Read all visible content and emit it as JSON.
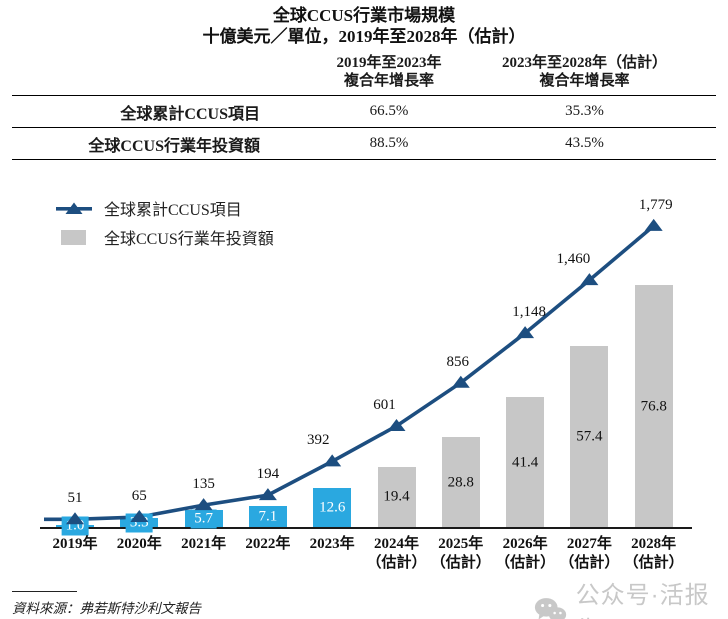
{
  "title": "全球CCUS行業市場規模",
  "subtitle": "十億美元／單位，2019年至2028年（估計）",
  "table": {
    "columns": [
      {
        "line1": "2019年至2023年",
        "line2": "複合年增長率"
      },
      {
        "line1": "2023年至2028年（估計）",
        "line2": "複合年增長率"
      }
    ],
    "rows": [
      {
        "label": "全球累計CCUS項目",
        "values": [
          "66.5%",
          "35.3%"
        ]
      },
      {
        "label": "全球CCUS行業年投資額",
        "values": [
          "88.5%",
          "43.5%"
        ]
      }
    ]
  },
  "chart_data": {
    "type": "combo line + bar, dual implicit scales, no visible y-axis",
    "categories": [
      {
        "label": "2019年",
        "sublabel": "",
        "estimate": false
      },
      {
        "label": "2020年",
        "sublabel": "",
        "estimate": false
      },
      {
        "label": "2021年",
        "sublabel": "",
        "estimate": false
      },
      {
        "label": "2022年",
        "sublabel": "",
        "estimate": false
      },
      {
        "label": "2023年",
        "sublabel": "",
        "estimate": false
      },
      {
        "label": "2024年",
        "sublabel": "（估計）",
        "estimate": true
      },
      {
        "label": "2025年",
        "sublabel": "（估計）",
        "estimate": true
      },
      {
        "label": "2026年",
        "sublabel": "（估計）",
        "estimate": true
      },
      {
        "label": "2027年",
        "sublabel": "（估計）",
        "estimate": true
      },
      {
        "label": "2028年",
        "sublabel": "（估計）",
        "estimate": true
      }
    ],
    "series": [
      {
        "name": "全球累計CCUS項目",
        "type": "line",
        "color": "#1d4e80",
        "values": [
          51,
          65,
          135,
          194,
          392,
          601,
          856,
          1148,
          1460,
          1779
        ],
        "value_labels": [
          "51",
          "65",
          "135",
          "194",
          "392",
          "601",
          "856",
          "1,148",
          "1,460",
          "1,779"
        ]
      },
      {
        "name": "全球CCUS行業年投資額",
        "type": "bar",
        "color_actual": "#2aa8e0",
        "color_estimate": "#c7c7c7",
        "values": [
          1.0,
          3.3,
          5.7,
          7.1,
          12.6,
          19.4,
          28.8,
          41.4,
          57.4,
          76.8
        ],
        "value_labels": [
          "1.0",
          "3.3",
          "5.7",
          "7.1",
          "12.6",
          "19.4",
          "28.8",
          "41.4",
          "57.4",
          "76.8"
        ]
      }
    ],
    "legend_position": "top-left inside plot",
    "grid": "off"
  },
  "footnote": {
    "text": "資料來源：弗若斯特沙利文報告"
  },
  "watermark": {
    "icon": "wechat",
    "text": "公众号·活报告"
  }
}
